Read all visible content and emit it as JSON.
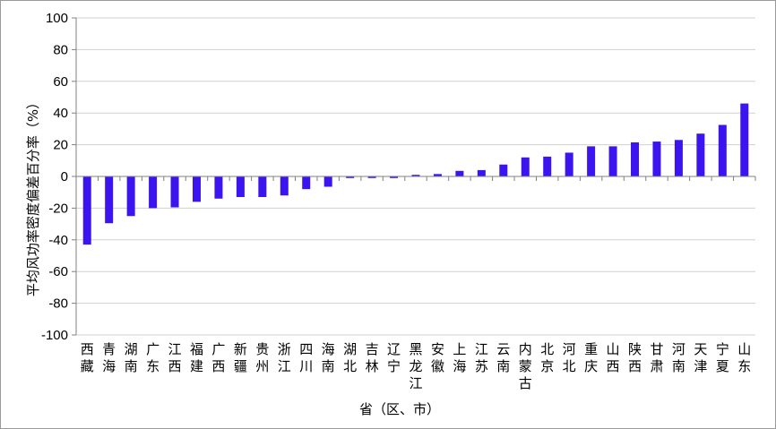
{
  "colors": {
    "bar": "#3b14f0",
    "grid": "#d0d0d0",
    "axis": "#808080"
  },
  "chart_data": {
    "type": "bar",
    "xlabel": "省（区、市）",
    "ylabel": "平均风功率密度偏差百分率（%）",
    "ylim": [
      -100,
      100
    ],
    "yticks": [
      -100,
      -80,
      -60,
      -40,
      -20,
      0,
      20,
      40,
      60,
      80,
      100
    ],
    "grid": true,
    "legend": "none",
    "categories": [
      "西藏",
      "青海",
      "湖南",
      "广东",
      "江西",
      "福建",
      "广西",
      "新疆",
      "贵州",
      "浙江",
      "四川",
      "海南",
      "湖北",
      "吉林",
      "辽宁",
      "黑龙江",
      "安徽",
      "上海",
      "江苏",
      "云南",
      "内蒙古",
      "北京",
      "河北",
      "重庆",
      "山西",
      "陕西",
      "甘肃",
      "河南",
      "天津",
      "宁夏",
      "山东"
    ],
    "values": [
      -43,
      -29.5,
      -25,
      -20,
      -19.5,
      -16,
      -14,
      -13,
      -13,
      -12,
      -8,
      -6.5,
      -1,
      -1,
      -1,
      1,
      1.5,
      3.5,
      4,
      7.5,
      12,
      12.5,
      15,
      19,
      19,
      21.5,
      22,
      23,
      27,
      32.5,
      46
    ]
  }
}
